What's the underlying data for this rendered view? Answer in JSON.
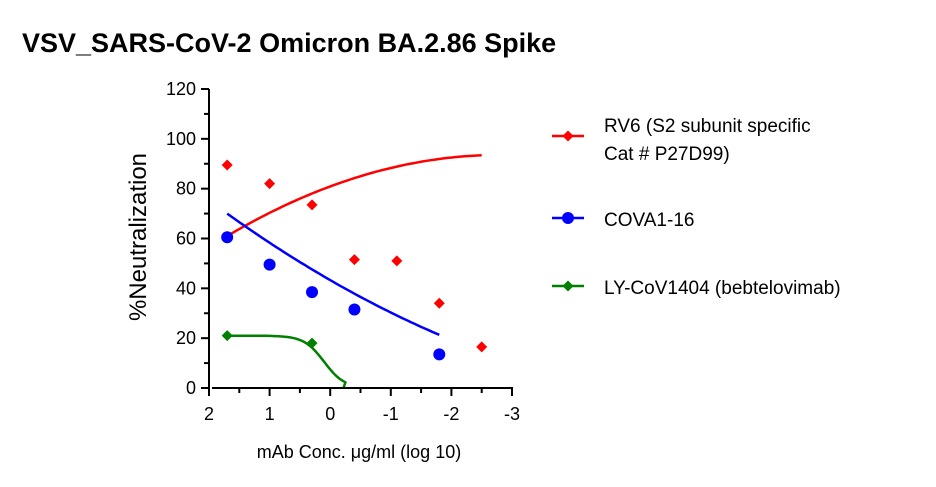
{
  "chart_data": {
    "type": "scatter",
    "title": "VSV_SARS-CoV-2 Omicron BA.2.86 Spike",
    "xlabel": "mAb Conc. μg/ml (log 10)",
    "ylabel": "%Neutralization",
    "xlim": [
      2,
      -3
    ],
    "ylim": [
      0,
      120
    ],
    "x_ticks": [
      "2",
      "1",
      "0",
      "-1",
      "-2",
      "-3"
    ],
    "y_ticks": [
      "0",
      "20",
      "40",
      "60",
      "80",
      "100",
      "120"
    ],
    "grid": false,
    "legend_position": "right",
    "series": [
      {
        "name_lines": [
          "RV6 (S2 subunit specific",
          "Cat # P27D99)"
        ],
        "color": "#ff0000",
        "marker": "diamond",
        "x": [
          1.7,
          1.0,
          0.3,
          -0.4,
          -1.1,
          -1.8,
          -2.5
        ],
        "y": [
          89.5,
          82,
          73.5,
          51.5,
          51,
          34,
          16.5
        ],
        "fit": {
          "x_start": 1.7,
          "x_end": -2.5,
          "coef": [
            80.9,
            -9.0,
            -1.6
          ]
        }
      },
      {
        "name": "COVA1-16",
        "color": "#0000ff",
        "marker": "circle",
        "x": [
          1.7,
          1.0,
          0.3,
          -0.4,
          -1.8
        ],
        "y": [
          60.5,
          49.5,
          38.5,
          31.5,
          13.5
        ],
        "fit": {
          "x_start": 1.7,
          "x_end": -1.8,
          "coef": [
            43.3,
            14.0,
            1.0
          ]
        }
      },
      {
        "name": "LY-CoV1404 (bebtelovimab)",
        "color": "#008000",
        "marker": "diamond",
        "x": [
          1.7,
          0.3
        ],
        "y": [
          21,
          18
        ],
        "fit": {
          "type": "sigmoid",
          "top": 21,
          "x_end": -0.25,
          "x50": 0.1,
          "slope": 6
        }
      }
    ]
  }
}
